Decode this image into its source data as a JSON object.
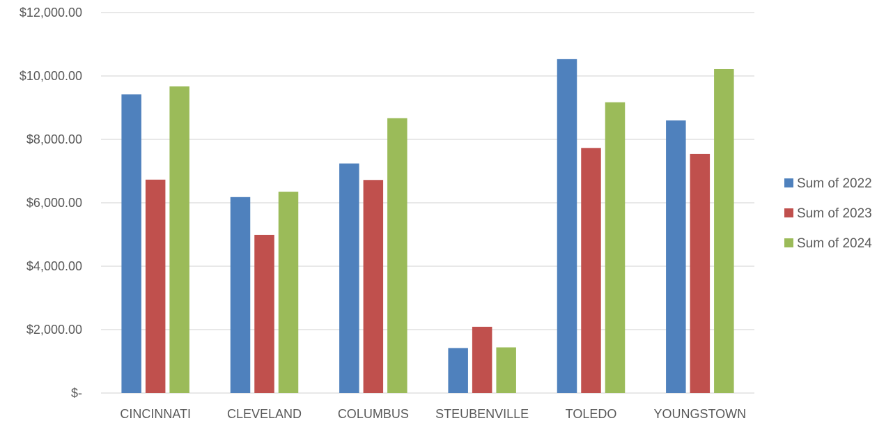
{
  "chart_data": {
    "type": "bar",
    "categories": [
      "CINCINNATI",
      "CLEVELAND",
      "COLUMBUS",
      "STEUBENVILLE",
      "TOLEDO",
      "YOUNGSTOWN"
    ],
    "series": [
      {
        "name": "Sum of 2022",
        "color": "#4F81BD",
        "values": [
          9420,
          6180,
          7240,
          1420,
          10530,
          8600
        ]
      },
      {
        "name": "Sum of 2023",
        "color": "#C0504D",
        "values": [
          6730,
          4990,
          6720,
          2090,
          7730,
          7540
        ]
      },
      {
        "name": "Sum of 2024",
        "color": "#9BBB59",
        "values": [
          9670,
          6350,
          8670,
          1440,
          9170,
          10220
        ]
      }
    ],
    "ylim": [
      0,
      12000
    ],
    "yticks": [
      0,
      2000,
      4000,
      6000,
      8000,
      10000,
      12000
    ],
    "ytick_labels": [
      "$-",
      "$2,000.00",
      "$4,000.00",
      "$6,000.00",
      "$8,000.00",
      "$10,000.00",
      "$12,000.00"
    ],
    "grid": true,
    "legend": "right",
    "gridline_color": "#D9D9D9"
  }
}
